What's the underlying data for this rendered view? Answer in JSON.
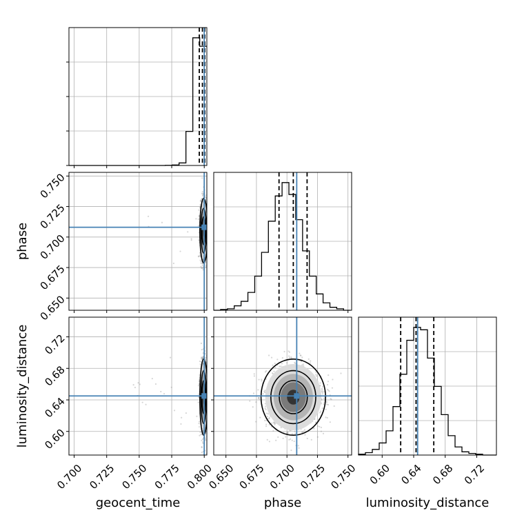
{
  "chart_data": {
    "type": "corner",
    "parameters": [
      "geocent_time",
      "phase",
      "luminosity_distance"
    ],
    "truths": {
      "geocent_time": 0.8,
      "phase": 0.708,
      "luminosity_distance": 0.645
    },
    "axes_ranges": {
      "geocent_time": [
        0.696,
        0.802
      ],
      "phase": [
        0.64,
        0.753
      ],
      "luminosity_distance": [
        0.57,
        0.745
      ]
    },
    "ticks": {
      "geocent_time": [
        "0.700",
        "0.725",
        "0.750",
        "0.775",
        "0.800"
      ],
      "phase": [
        "0.650",
        "0.675",
        "0.700",
        "0.725",
        "0.750"
      ],
      "luminosity_distance": [
        "0.60",
        "0.64",
        "0.68",
        "0.72"
      ]
    },
    "marginals": {
      "geocent_time": {
        "bins": [
          0.696,
          0.70129,
          0.70658,
          0.71187,
          0.71716,
          0.72245,
          0.72774,
          0.73303,
          0.73832,
          0.74361,
          0.7489,
          0.75419,
          0.75948,
          0.76477,
          0.77006,
          0.77535,
          0.78064,
          0.78593,
          0.79122,
          0.79651,
          0.8018
        ],
        "counts": [
          0,
          0,
          0,
          0,
          0,
          0,
          0,
          0,
          0,
          0,
          0,
          0,
          0,
          0,
          0.3,
          1.2,
          6,
          80,
          300,
          280
        ],
        "quantiles": [
          0.7962,
          0.7986,
          0.8004
        ]
      },
      "phase": {
        "bins": [
          0.64,
          0.6456,
          0.6512,
          0.6568,
          0.6624,
          0.668,
          0.6736,
          0.6792,
          0.6848,
          0.6904,
          0.696,
          0.7016,
          0.7072,
          0.7128,
          0.7184,
          0.724,
          0.7296,
          0.7352,
          0.7408,
          0.7464,
          0.752
        ],
        "counts": [
          0,
          1,
          2,
          6,
          12,
          24,
          46,
          78,
          120,
          154,
          172,
          156,
          122,
          80,
          46,
          22,
          10,
          4,
          2,
          0
        ],
        "quantiles": [
          0.6935,
          0.7052,
          0.7165
        ]
      },
      "luminosity_distance": {
        "bins": [
          0.57,
          0.57875,
          0.5875,
          0.59625,
          0.605,
          0.61375,
          0.6225,
          0.63125,
          0.64,
          0.64875,
          0.6575,
          0.66625,
          0.675,
          0.68375,
          0.6925,
          0.70125,
          0.71,
          0.71875,
          0.7275,
          0.73625,
          0.745
        ],
        "counts": [
          1,
          3,
          7,
          15,
          30,
          60,
          100,
          142,
          158,
          155,
          120,
          85,
          50,
          24,
          10,
          4,
          2,
          1,
          0,
          0
        ],
        "quantiles": [
          0.6235,
          0.643,
          0.6655
        ]
      }
    },
    "joint_panels": [
      {
        "x": "geocent_time",
        "y": "phase"
      },
      {
        "x": "geocent_time",
        "y": "luminosity_distance"
      },
      {
        "x": "phase",
        "y": "luminosity_distance"
      }
    ],
    "grid": true
  }
}
